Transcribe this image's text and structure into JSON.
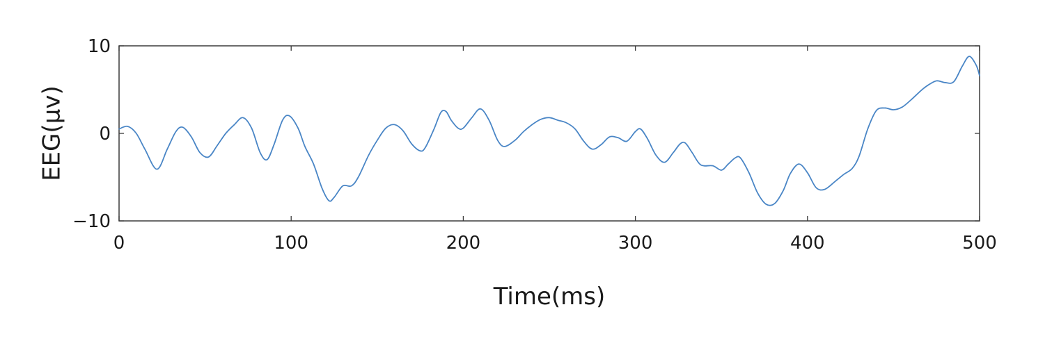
{
  "chart_data": {
    "type": "line",
    "title": "",
    "xlabel": "Time(ms)",
    "ylabel": "EEG(μv)",
    "xlim": [
      0,
      500
    ],
    "ylim": [
      -10,
      10
    ],
    "xticks": [
      0,
      100,
      200,
      300,
      400,
      500
    ],
    "yticks": [
      -10,
      0,
      10
    ],
    "xtick_labels": [
      "0",
      "100",
      "200",
      "300",
      "400",
      "500"
    ],
    "ytick_labels": [
      "−10",
      "0",
      "10"
    ],
    "grid": false,
    "line_color": "#4a86c6",
    "series": [
      {
        "x": [
          0,
          5,
          10,
          15,
          22,
          28,
          33,
          37,
          42,
          47,
          52,
          57,
          62,
          67,
          72,
          77,
          82,
          86,
          90,
          95,
          99,
          104,
          108,
          113,
          118,
          122,
          125,
          130,
          135,
          139,
          145,
          150,
          155,
          160,
          165,
          170,
          175,
          178,
          183,
          187,
          190,
          193,
          197,
          200,
          205,
          210,
          215,
          220,
          224,
          230,
          235,
          240,
          245,
          250,
          255,
          260,
          265,
          270,
          275,
          280,
          285,
          290,
          295,
          300,
          303,
          307,
          312,
          317,
          322,
          326,
          329,
          333,
          338,
          345,
          350,
          354,
          358,
          361,
          366,
          371,
          376,
          381,
          386,
          390,
          395,
          400,
          405,
          410,
          416,
          421,
          426,
          430,
          435,
          440,
          445,
          450,
          455,
          460,
          466,
          470,
          475,
          480,
          485,
          490,
          494,
          498,
          500
        ],
        "y": [
          0.5,
          0.8,
          0,
          -1.8,
          -4.1,
          -1.8,
          0.2,
          0.7,
          -0.4,
          -2.2,
          -2.7,
          -1.4,
          0,
          1.0,
          1.8,
          0.6,
          -2.2,
          -3.0,
          -1.3,
          1.5,
          2.0,
          0.6,
          -1.5,
          -3.5,
          -6.3,
          -7.7,
          -7.3,
          -6.0,
          -6.0,
          -5.0,
          -2.5,
          -0.8,
          0.6,
          1.0,
          0.3,
          -1.2,
          -2.0,
          -1.6,
          0.5,
          2.4,
          2.5,
          1.5,
          0.6,
          0.6,
          1.8,
          2.8,
          1.5,
          -0.8,
          -1.5,
          -0.8,
          0.2,
          1.0,
          1.6,
          1.8,
          1.5,
          1.2,
          0.5,
          -0.9,
          -1.8,
          -1.3,
          -0.4,
          -0.5,
          -0.9,
          0.2,
          0.5,
          -0.6,
          -2.5,
          -3.3,
          -2.2,
          -1.2,
          -1.1,
          -2.2,
          -3.6,
          -3.7,
          -4.2,
          -3.5,
          -2.8,
          -2.8,
          -4.5,
          -6.8,
          -8.1,
          -8.0,
          -6.5,
          -4.6,
          -3.5,
          -4.5,
          -6.2,
          -6.4,
          -5.5,
          -4.7,
          -4.0,
          -2.6,
          0.5,
          2.6,
          2.9,
          2.7,
          3.0,
          3.8,
          4.9,
          5.5,
          6.0,
          5.8,
          5.9,
          7.7,
          8.8,
          7.8,
          6.6
        ]
      }
    ]
  }
}
